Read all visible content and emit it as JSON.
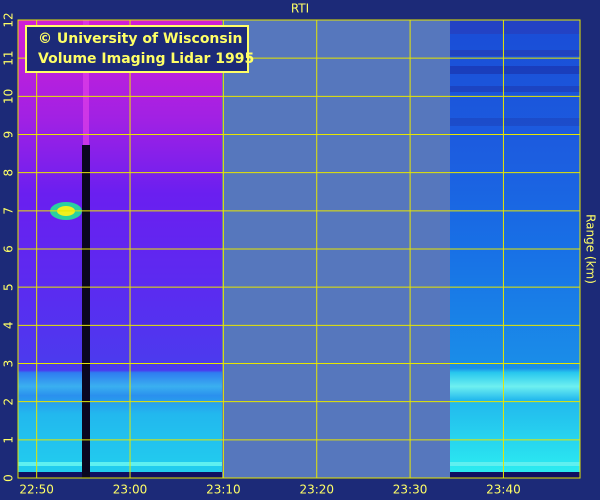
{
  "chart_data": {
    "type": "rti",
    "title": "RTI",
    "y_label": "Range (km)",
    "annotation": [
      "© University of Wisconsin",
      "Volume Imaging Lidar  1995"
    ],
    "xlim": [
      1368,
      1428.2
    ],
    "xticks": [
      {
        "value": 1370,
        "label": "22:50"
      },
      {
        "value": 1380,
        "label": "23:00"
      },
      {
        "value": 1390,
        "label": "23:10"
      },
      {
        "value": 1400,
        "label": "23:20"
      },
      {
        "value": 1410,
        "label": "23:30"
      },
      {
        "value": 1420,
        "label": "23:40"
      }
    ],
    "ylim": [
      0,
      12
    ],
    "yticks": [
      0,
      1,
      2,
      3,
      4,
      5,
      6,
      7,
      8,
      9,
      10,
      11,
      12
    ],
    "grid": true,
    "grid_color": "#e6e600",
    "text_color": "#ffff66"
  }
}
